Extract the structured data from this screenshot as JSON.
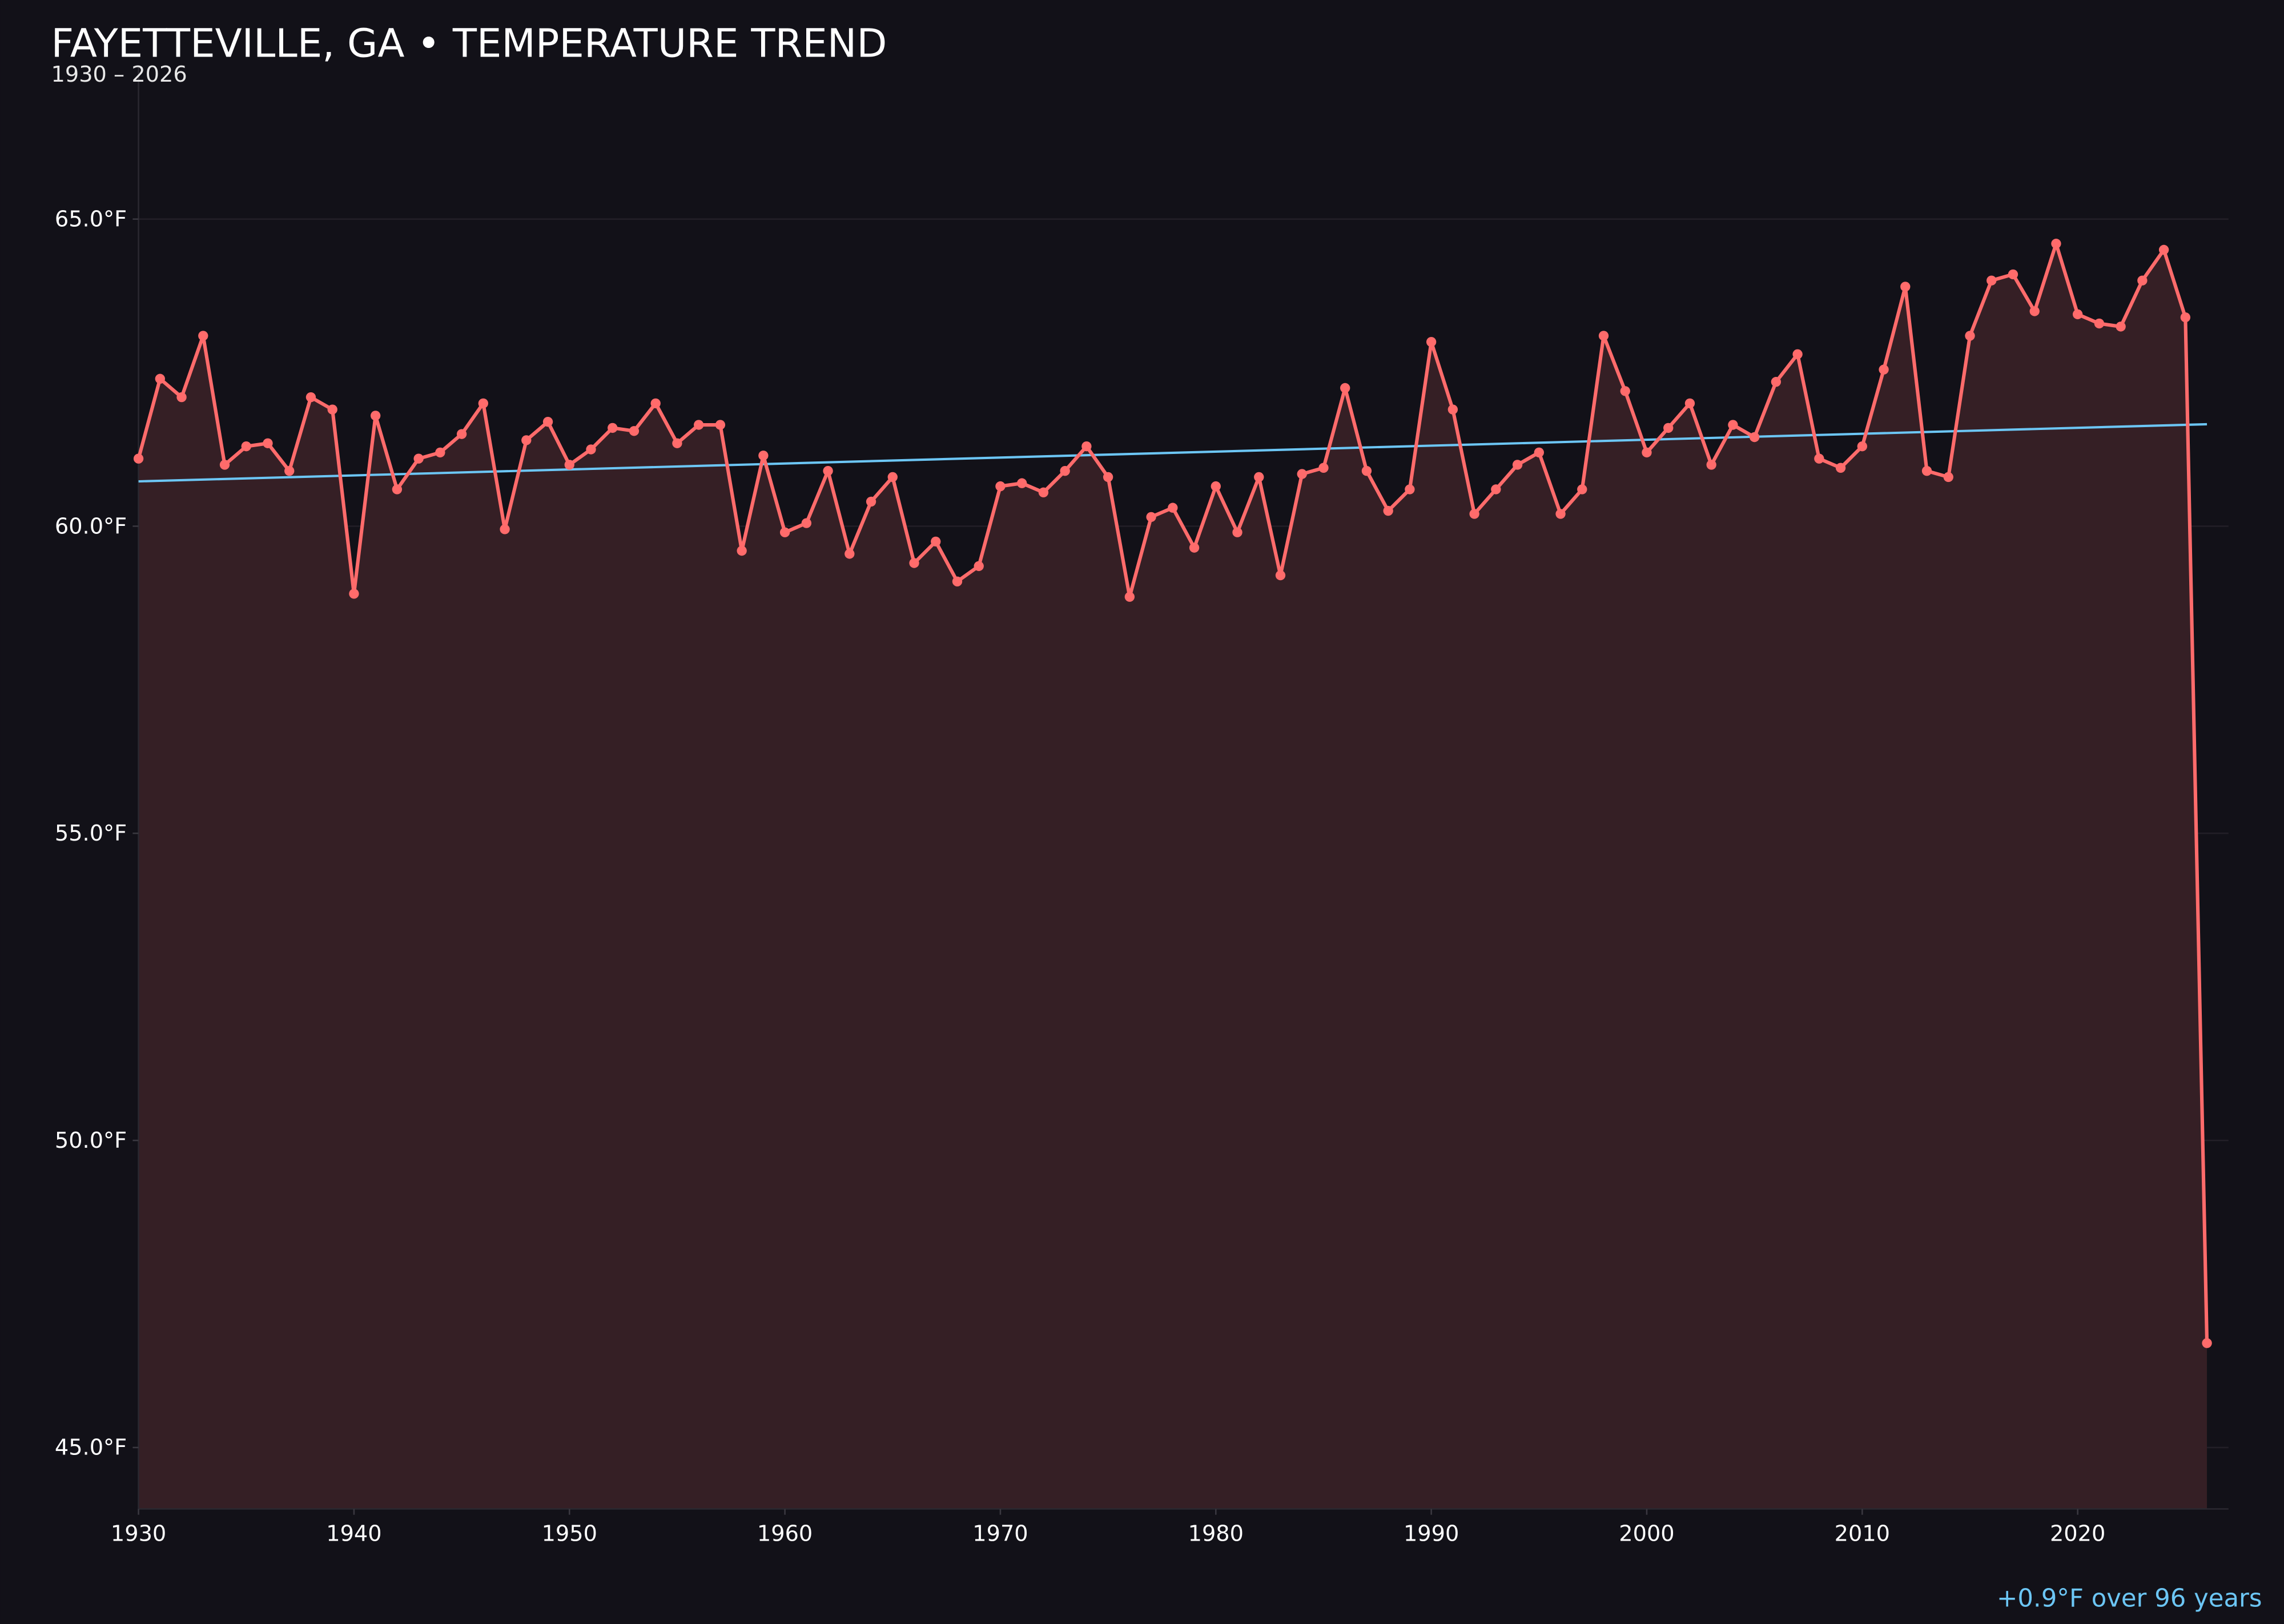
{
  "chart_data": {
    "type": "line",
    "title": "FAYETTEVILLE, GA • TEMPERATURE TREND",
    "subtitle": "1930 – 2026",
    "annotation": "+0.9°F over 96 years",
    "xlabel": "",
    "ylabel": "",
    "xlim": [
      1930,
      2027
    ],
    "ylim": [
      44.0,
      67.5
    ],
    "y_ticks": [
      45,
      50,
      55,
      60,
      65
    ],
    "y_tick_labels": [
      "45.0°F",
      "50.0°F",
      "55.0°F",
      "60.0°F",
      "65.0°F"
    ],
    "x_ticks": [
      1930,
      1940,
      1950,
      1960,
      1970,
      1980,
      1990,
      2000,
      2010,
      2020
    ],
    "x_tick_labels": [
      "1930",
      "1940",
      "1950",
      "1960",
      "1970",
      "1980",
      "1990",
      "2000",
      "2010",
      "2020"
    ],
    "grid": true,
    "area_fill": true,
    "colors": {
      "background": "#121118",
      "series": "#ff6b6b",
      "fill": "#351f25",
      "trend": "#6cc6f5",
      "text": "#ffffff",
      "grid": "#221f27"
    },
    "series": [
      {
        "x": [
          1930,
          1931,
          1932,
          1933,
          1934,
          1935,
          1936,
          1937,
          1938,
          1939,
          1940,
          1941,
          1942,
          1943,
          1944,
          1945,
          1946,
          1947,
          1948,
          1949,
          1950,
          1951,
          1952,
          1953,
          1954,
          1955,
          1956,
          1957,
          1958,
          1959,
          1960,
          1961,
          1962,
          1963,
          1964,
          1965,
          1966,
          1967,
          1968,
          1969,
          1970,
          1971,
          1972,
          1973,
          1974,
          1975,
          1976,
          1977,
          1978,
          1979,
          1980,
          1981,
          1982,
          1983,
          1984,
          1985,
          1986,
          1987,
          1988,
          1989,
          1990,
          1991,
          1992,
          1993,
          1994,
          1995,
          1996,
          1997,
          1998,
          1999,
          2000,
          2001,
          2002,
          2003,
          2004,
          2005,
          2006,
          2007,
          2008,
          2009,
          2010,
          2011,
          2012,
          2013,
          2014,
          2015,
          2016,
          2017,
          2018,
          2019,
          2020,
          2021,
          2022,
          2023,
          2024,
          2025,
          2026
        ],
        "y": [
          61.1,
          62.4,
          62.1,
          63.1,
          61.0,
          61.3,
          61.35,
          60.9,
          62.1,
          61.9,
          58.9,
          61.8,
          60.6,
          61.1,
          61.2,
          61.5,
          62.0,
          59.95,
          61.4,
          61.7,
          61.0,
          61.25,
          61.6,
          61.55,
          62.0,
          61.35,
          61.65,
          61.65,
          59.6,
          61.15,
          59.9,
          60.05,
          60.9,
          59.55,
          60.4,
          60.8,
          59.4,
          59.75,
          59.1,
          59.35,
          60.65,
          60.7,
          60.55,
          60.9,
          61.3,
          60.8,
          58.85,
          60.15,
          60.3,
          59.65,
          60.65,
          59.9,
          60.8,
          59.2,
          60.85,
          60.95,
          62.25,
          60.9,
          60.25,
          60.6,
          63.0,
          61.9,
          60.2,
          60.6,
          61.0,
          61.2,
          60.2,
          60.6,
          63.1,
          62.2,
          61.2,
          61.6,
          62.0,
          61.0,
          61.65,
          61.45,
          62.35,
          62.8,
          61.1,
          60.95,
          61.3,
          62.55,
          63.9,
          60.9,
          60.8,
          63.1,
          64.0,
          64.1,
          63.5,
          64.6,
          63.45,
          63.3,
          63.25,
          64.0,
          64.5,
          63.4,
          46.7
        ]
      }
    ],
    "trend_line": {
      "x": [
        1930,
        2026
      ],
      "y": [
        60.73,
        61.66
      ]
    }
  }
}
